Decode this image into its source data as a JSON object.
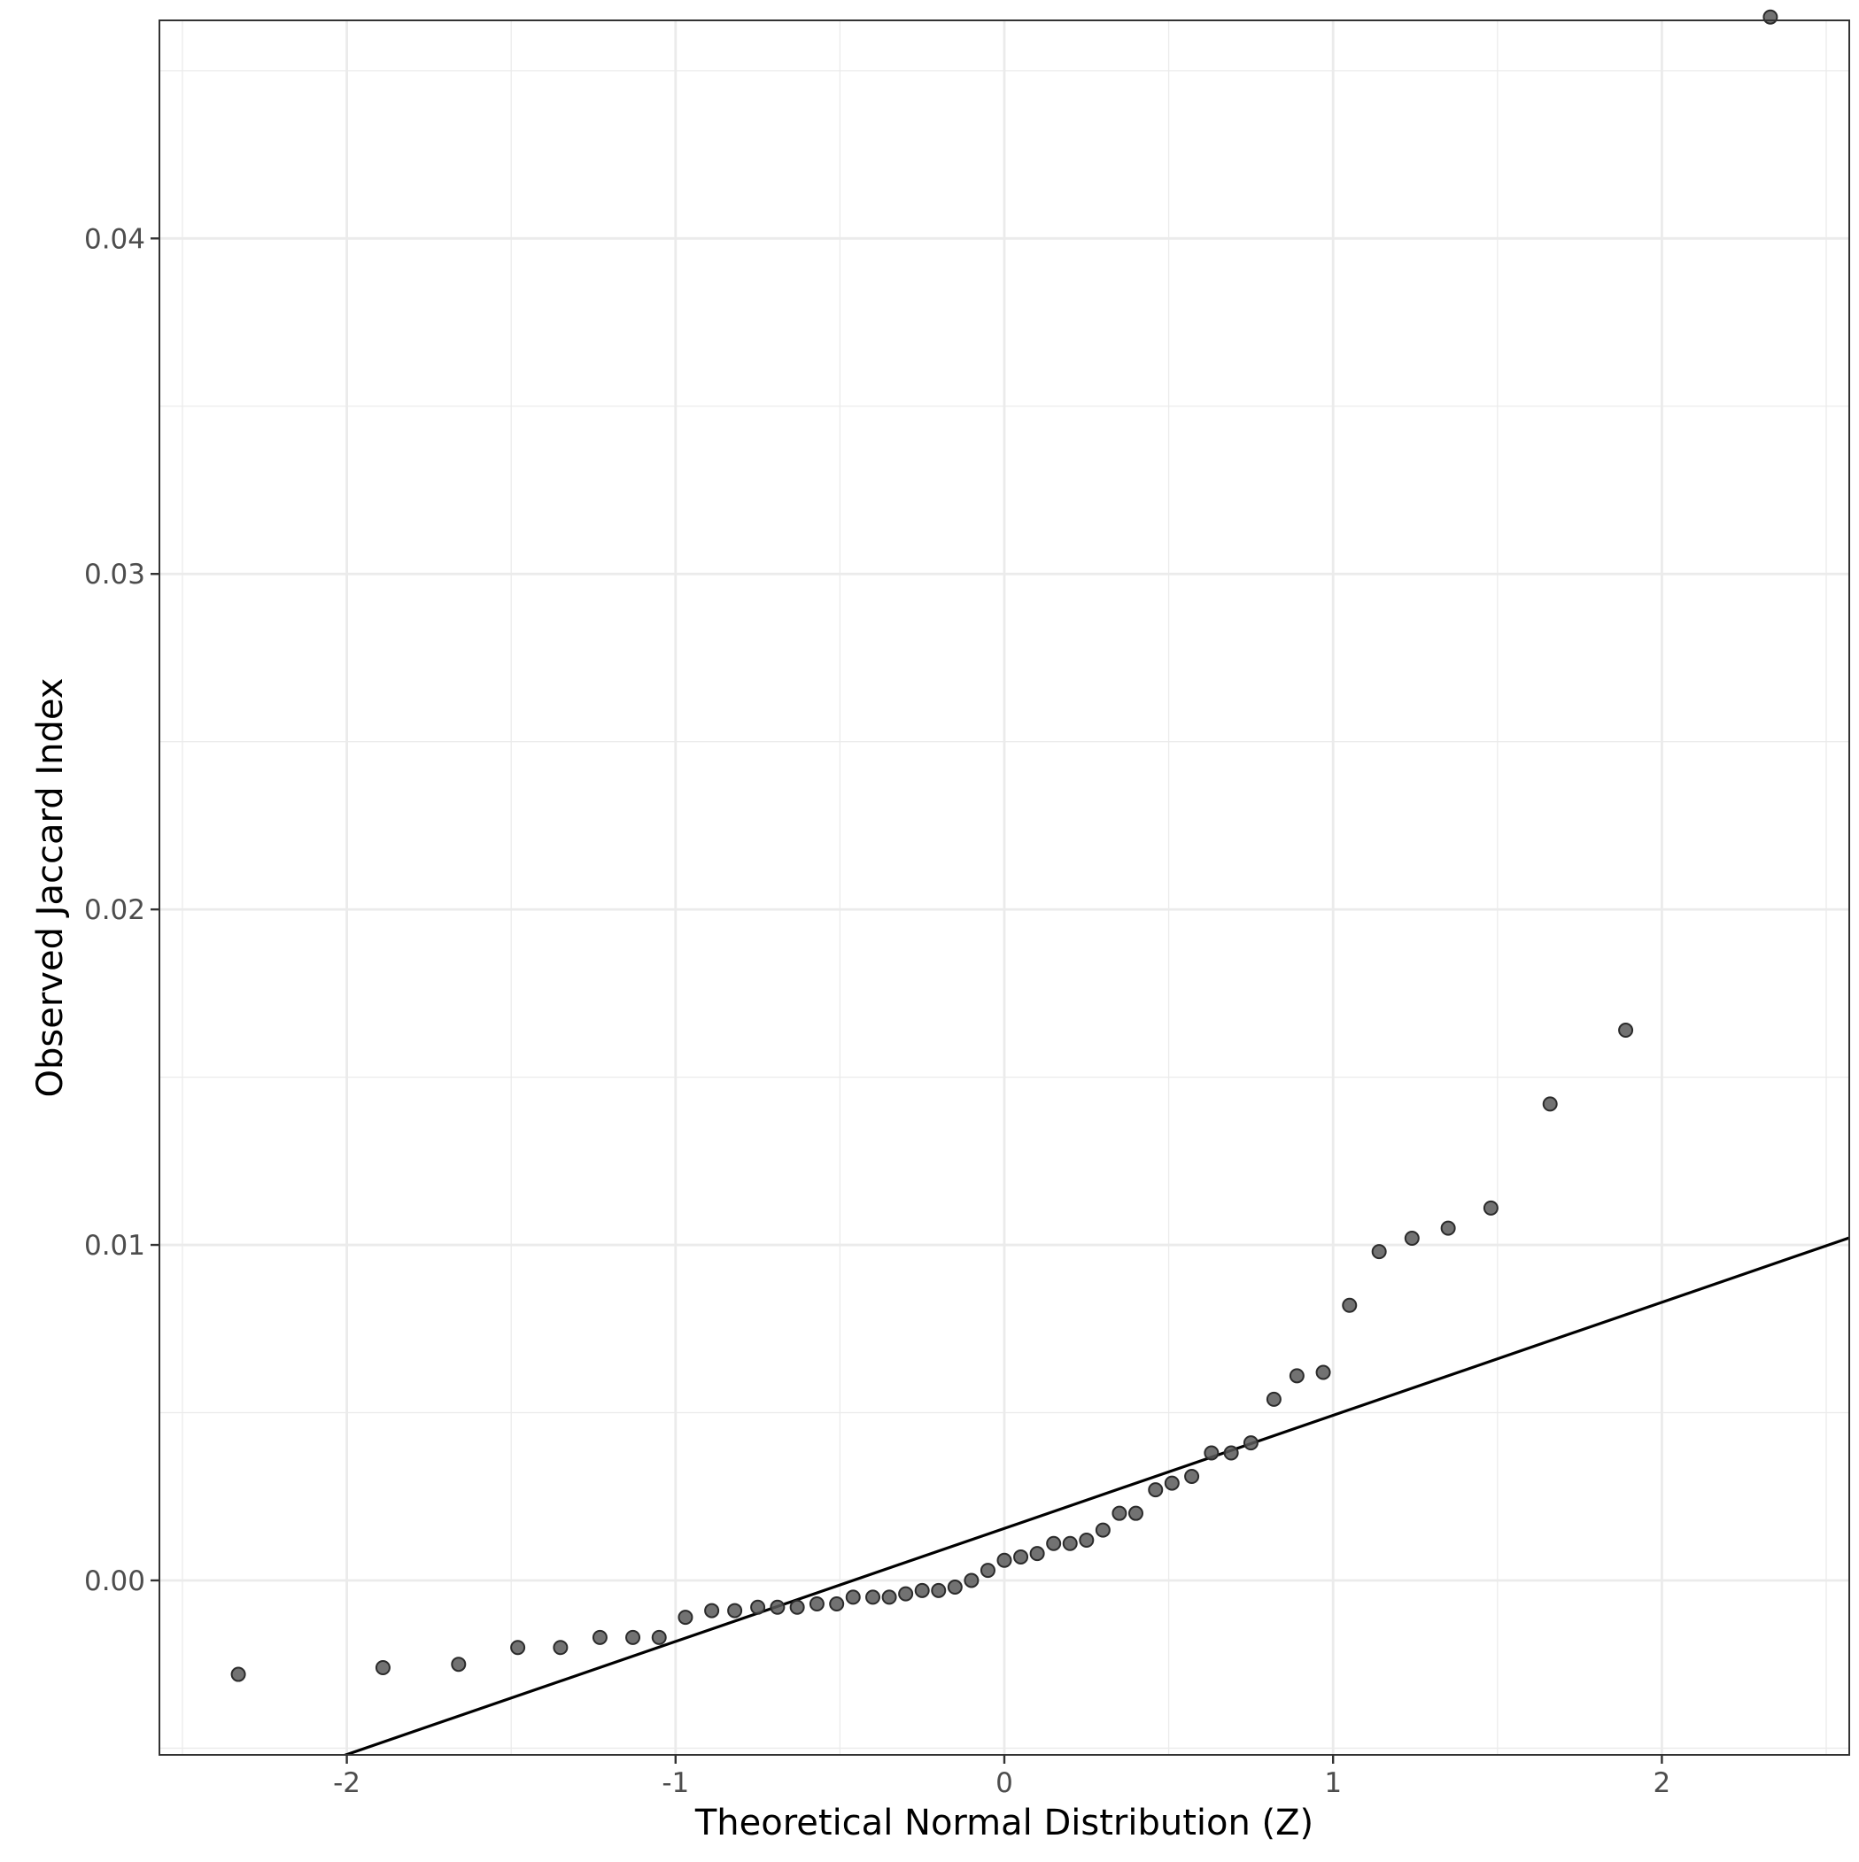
{
  "chart_data": {
    "type": "scatter",
    "title": "",
    "xlabel": "Theoretical Normal Distribution (Z)",
    "ylabel": "Observed Jaccard Index",
    "xlim": [
      -2.57,
      2.57
    ],
    "ylim": [
      -0.0052,
      0.0465
    ],
    "x_ticks": [
      -2,
      -1,
      0,
      1,
      2
    ],
    "x_tick_labels": [
      "-2",
      "-1",
      "0",
      "1",
      "2"
    ],
    "y_ticks": [
      0.0,
      0.01,
      0.02,
      0.03,
      0.04
    ],
    "y_tick_labels": [
      "0.00",
      "0.01",
      "0.02",
      "0.03",
      "0.04"
    ],
    "grid": true,
    "point_color": "#595959",
    "line_color": "#000000",
    "reference_line": {
      "intercept": 0.00155,
      "slope": 0.00337
    },
    "points": [
      {
        "x": -2.33,
        "y": -0.0028
      },
      {
        "x": -1.89,
        "y": -0.0026
      },
      {
        "x": -1.66,
        "y": -0.0025
      },
      {
        "x": -1.48,
        "y": -0.002
      },
      {
        "x": -1.35,
        "y": -0.002
      },
      {
        "x": -1.23,
        "y": -0.0017
      },
      {
        "x": -1.13,
        "y": -0.0017
      },
      {
        "x": -1.05,
        "y": -0.0017
      },
      {
        "x": -0.97,
        "y": -0.0011
      },
      {
        "x": -0.89,
        "y": -0.0009
      },
      {
        "x": -0.82,
        "y": -0.0009
      },
      {
        "x": -0.75,
        "y": -0.0008
      },
      {
        "x": -0.69,
        "y": -0.0008
      },
      {
        "x": -0.63,
        "y": -0.0008
      },
      {
        "x": -0.57,
        "y": -0.0007
      },
      {
        "x": -0.51,
        "y": -0.0007
      },
      {
        "x": -0.46,
        "y": -0.0005
      },
      {
        "x": -0.4,
        "y": -0.0005
      },
      {
        "x": -0.35,
        "y": -0.0005
      },
      {
        "x": -0.3,
        "y": -0.0004
      },
      {
        "x": -0.25,
        "y": -0.0003
      },
      {
        "x": -0.2,
        "y": -0.0003
      },
      {
        "x": -0.15,
        "y": -0.0002
      },
      {
        "x": -0.1,
        "y": 0.0
      },
      {
        "x": -0.05,
        "y": 0.0003
      },
      {
        "x": 0.0,
        "y": 0.0006
      },
      {
        "x": 0.05,
        "y": 0.0007
      },
      {
        "x": 0.1,
        "y": 0.0008
      },
      {
        "x": 0.15,
        "y": 0.0011
      },
      {
        "x": 0.2,
        "y": 0.0011
      },
      {
        "x": 0.25,
        "y": 0.0012
      },
      {
        "x": 0.3,
        "y": 0.0015
      },
      {
        "x": 0.35,
        "y": 0.002
      },
      {
        "x": 0.4,
        "y": 0.002
      },
      {
        "x": 0.46,
        "y": 0.0027
      },
      {
        "x": 0.51,
        "y": 0.0029
      },
      {
        "x": 0.57,
        "y": 0.0031
      },
      {
        "x": 0.63,
        "y": 0.0038
      },
      {
        "x": 0.69,
        "y": 0.0038
      },
      {
        "x": 0.75,
        "y": 0.0041
      },
      {
        "x": 0.82,
        "y": 0.0054
      },
      {
        "x": 0.89,
        "y": 0.0061
      },
      {
        "x": 0.97,
        "y": 0.0062
      },
      {
        "x": 1.05,
        "y": 0.0082
      },
      {
        "x": 1.14,
        "y": 0.0098
      },
      {
        "x": 1.24,
        "y": 0.0102
      },
      {
        "x": 1.35,
        "y": 0.0105
      },
      {
        "x": 1.48,
        "y": 0.0111
      },
      {
        "x": 1.66,
        "y": 0.0142
      },
      {
        "x": 1.89,
        "y": 0.0164
      },
      {
        "x": 2.33,
        "y": 0.0466
      }
    ]
  }
}
